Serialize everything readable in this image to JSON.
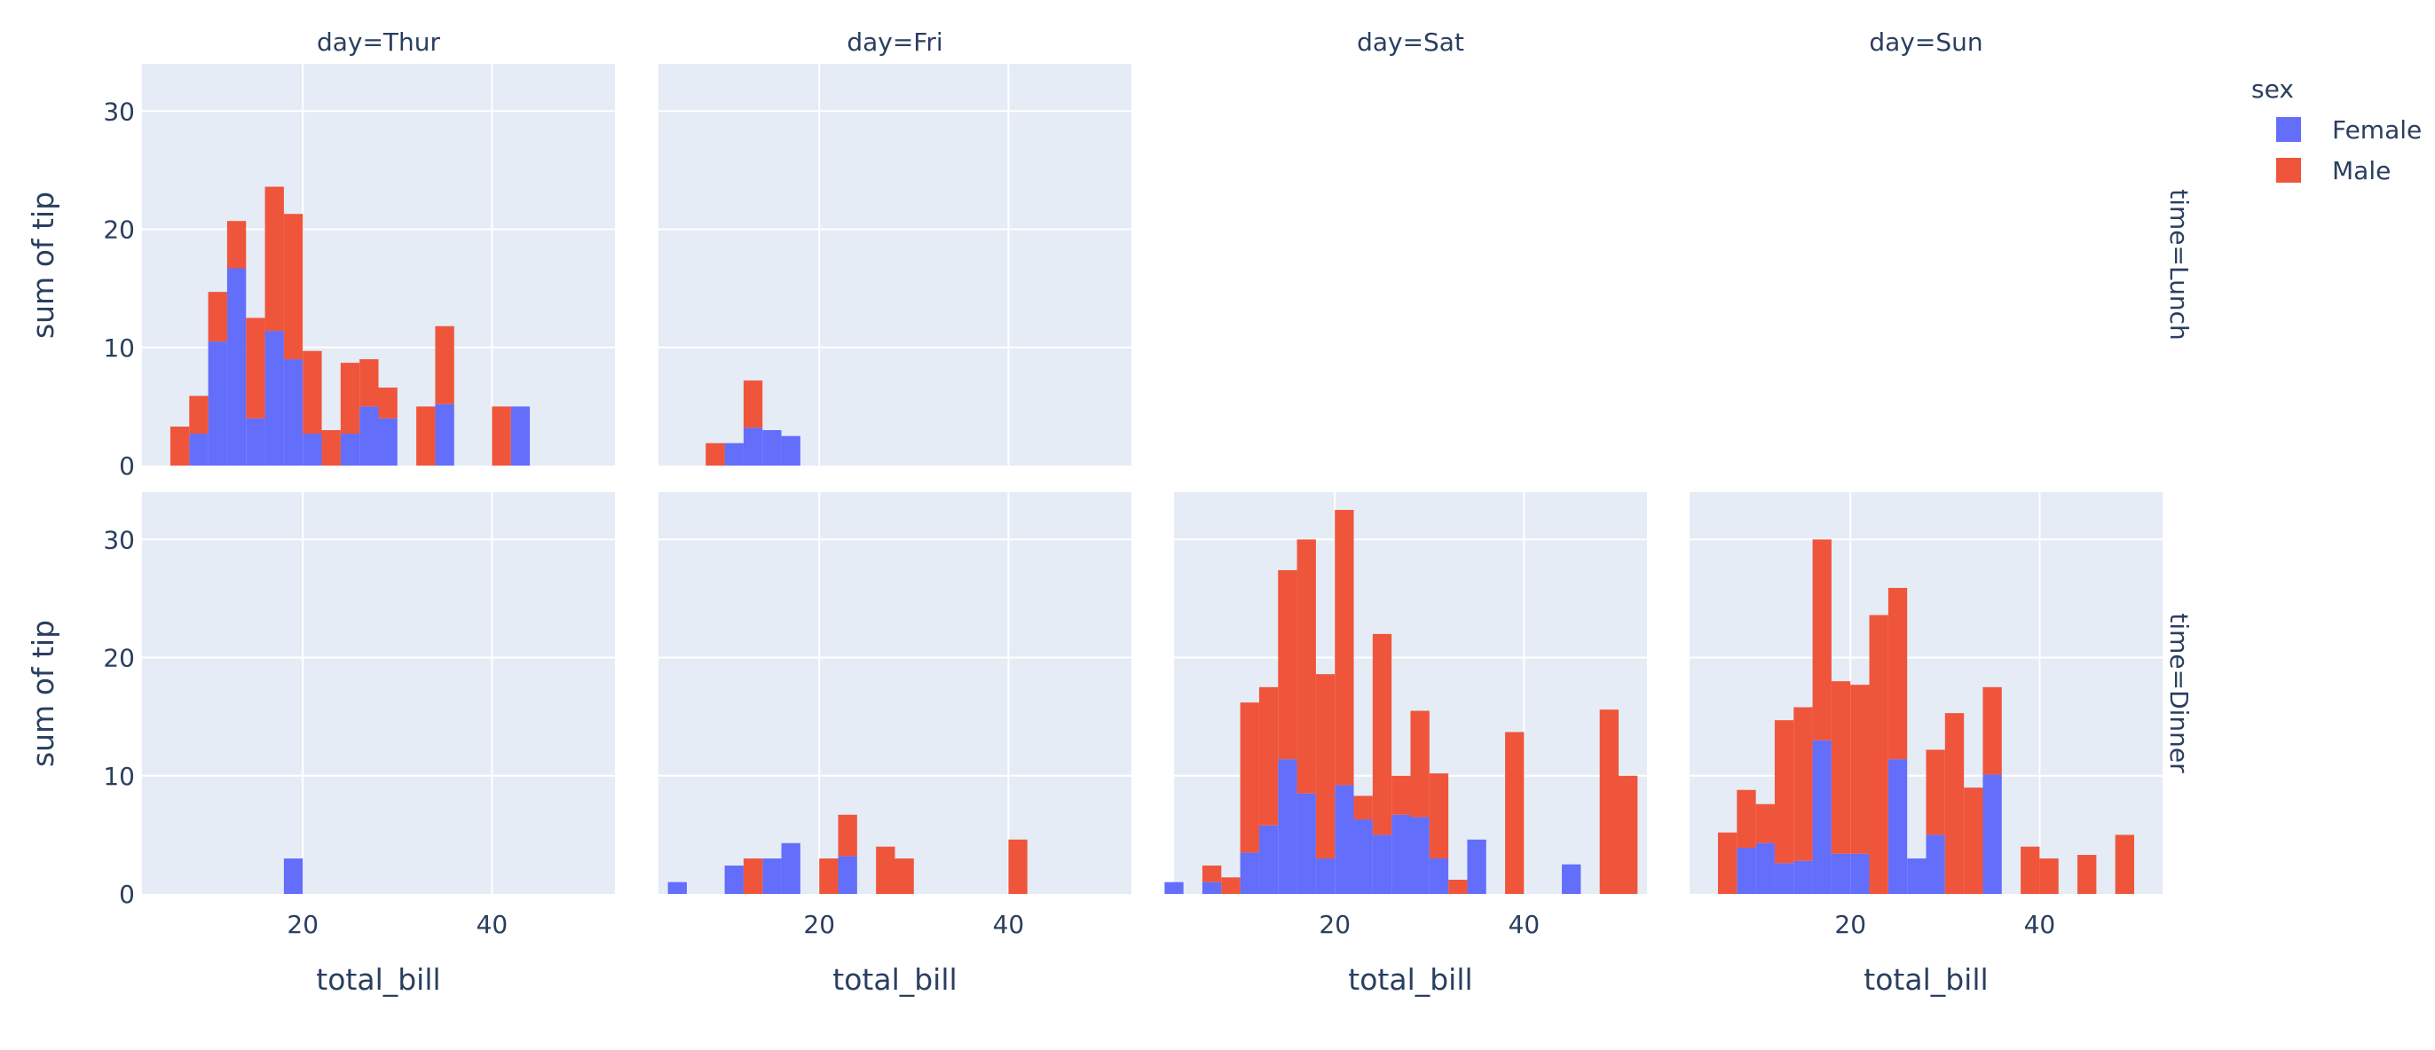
{
  "chart_data": {
    "type": "bar",
    "subtype": "stacked-histogram-facet-grid",
    "x_label": "total_bill",
    "y_label": "sum of tip",
    "x_ticks": [
      20,
      40
    ],
    "y_ticks": [
      0,
      10,
      20,
      30
    ],
    "xlim": [
      3,
      53
    ],
    "ylim": [
      0,
      34
    ],
    "bin_width": 2,
    "grid": true,
    "legend": {
      "title": "sex",
      "placement": "top-right",
      "entries": [
        {
          "name": "Female",
          "color": "#636efa"
        },
        {
          "name": "Male",
          "color": "#ef553b"
        }
      ]
    },
    "columns": [
      "day=Thur",
      "day=Fri",
      "day=Sat",
      "day=Sun"
    ],
    "rows": [
      "time=Lunch",
      "time=Dinner"
    ],
    "panels": [
      {
        "day": "Thur",
        "time": "Lunch",
        "female": [
          [
            8,
            2.7
          ],
          [
            10,
            10.5
          ],
          [
            12,
            16.7
          ],
          [
            14,
            4
          ],
          [
            16,
            11.4
          ],
          [
            18,
            9
          ],
          [
            20,
            2.7
          ],
          [
            24,
            2.7
          ],
          [
            26,
            5
          ],
          [
            28,
            4
          ],
          [
            34,
            5.2
          ],
          [
            42,
            5
          ]
        ],
        "male": [
          [
            6,
            3.3
          ],
          [
            8,
            3.2
          ],
          [
            10,
            4.2
          ],
          [
            12,
            4
          ],
          [
            14,
            8.5
          ],
          [
            16,
            12.2
          ],
          [
            18,
            12.3
          ],
          [
            20,
            7
          ],
          [
            22,
            3
          ],
          [
            24,
            6
          ],
          [
            26,
            4
          ],
          [
            28,
            2.6
          ],
          [
            32,
            5
          ],
          [
            34,
            6.6
          ],
          [
            40,
            5
          ]
        ]
      },
      {
        "day": "Fri",
        "time": "Lunch",
        "female": [
          [
            10,
            1.9
          ],
          [
            12,
            3.2
          ],
          [
            14,
            3
          ],
          [
            16,
            2.5
          ]
        ],
        "male": [
          [
            8,
            1.9
          ],
          [
            12,
            4
          ]
        ]
      },
      {
        "day": "Sat",
        "time": "Lunch",
        "female": [],
        "male": []
      },
      {
        "day": "Sun",
        "time": "Lunch",
        "female": [],
        "male": []
      },
      {
        "day": "Thur",
        "time": "Dinner",
        "female": [
          [
            18,
            3
          ]
        ],
        "male": []
      },
      {
        "day": "Fri",
        "time": "Dinner",
        "female": [
          [
            4,
            1
          ],
          [
            10,
            2.4
          ],
          [
            14,
            3
          ],
          [
            16,
            4.3
          ],
          [
            22,
            3.2
          ]
        ],
        "male": [
          [
            12,
            3
          ],
          [
            20,
            3
          ],
          [
            22,
            3.5
          ],
          [
            26,
            4
          ],
          [
            28,
            3
          ],
          [
            40,
            4.6
          ]
        ]
      },
      {
        "day": "Sat",
        "time": "Dinner",
        "female": [
          [
            2,
            1
          ],
          [
            6,
            1
          ],
          [
            10,
            3.5
          ],
          [
            12,
            5.8
          ],
          [
            14,
            11.4
          ],
          [
            16,
            8.5
          ],
          [
            18,
            3
          ],
          [
            20,
            9.2
          ],
          [
            22,
            6.3
          ],
          [
            24,
            5
          ],
          [
            26,
            6.7
          ],
          [
            28,
            6.5
          ],
          [
            30,
            3
          ],
          [
            34,
            4.6
          ],
          [
            44,
            2.5
          ]
        ],
        "male": [
          [
            6,
            1.4
          ],
          [
            8,
            1.4
          ],
          [
            10,
            12.7
          ],
          [
            12,
            11.7
          ],
          [
            14,
            16
          ],
          [
            16,
            21.5
          ],
          [
            18,
            15.6
          ],
          [
            20,
            23.3
          ],
          [
            22,
            2
          ],
          [
            24,
            17
          ],
          [
            26,
            3.3
          ],
          [
            28,
            9
          ],
          [
            30,
            7.2
          ],
          [
            32,
            1.2
          ],
          [
            38,
            13.7
          ],
          [
            48,
            15.6
          ],
          [
            50,
            10
          ]
        ]
      },
      {
        "day": "Sun",
        "time": "Dinner",
        "female": [
          [
            8,
            3.9
          ],
          [
            10,
            4.3
          ],
          [
            12,
            2.6
          ],
          [
            14,
            2.8
          ],
          [
            16,
            13
          ],
          [
            18,
            3.4
          ],
          [
            20,
            3.4
          ],
          [
            24,
            11.4
          ],
          [
            26,
            3
          ],
          [
            28,
            5
          ],
          [
            34,
            10.1
          ]
        ],
        "male": [
          [
            6,
            5.2
          ],
          [
            8,
            4.9
          ],
          [
            10,
            3.3
          ],
          [
            12,
            12.1
          ],
          [
            14,
            13
          ],
          [
            16,
            17
          ],
          [
            18,
            14.6
          ],
          [
            20,
            14.3
          ],
          [
            22,
            23.6
          ],
          [
            24,
            14.5
          ],
          [
            28,
            7.2
          ],
          [
            30,
            15.3
          ],
          [
            32,
            9
          ],
          [
            34,
            7.4
          ],
          [
            38,
            4
          ],
          [
            40,
            3
          ],
          [
            44,
            3.3
          ],
          [
            48,
            5
          ]
        ]
      }
    ]
  }
}
